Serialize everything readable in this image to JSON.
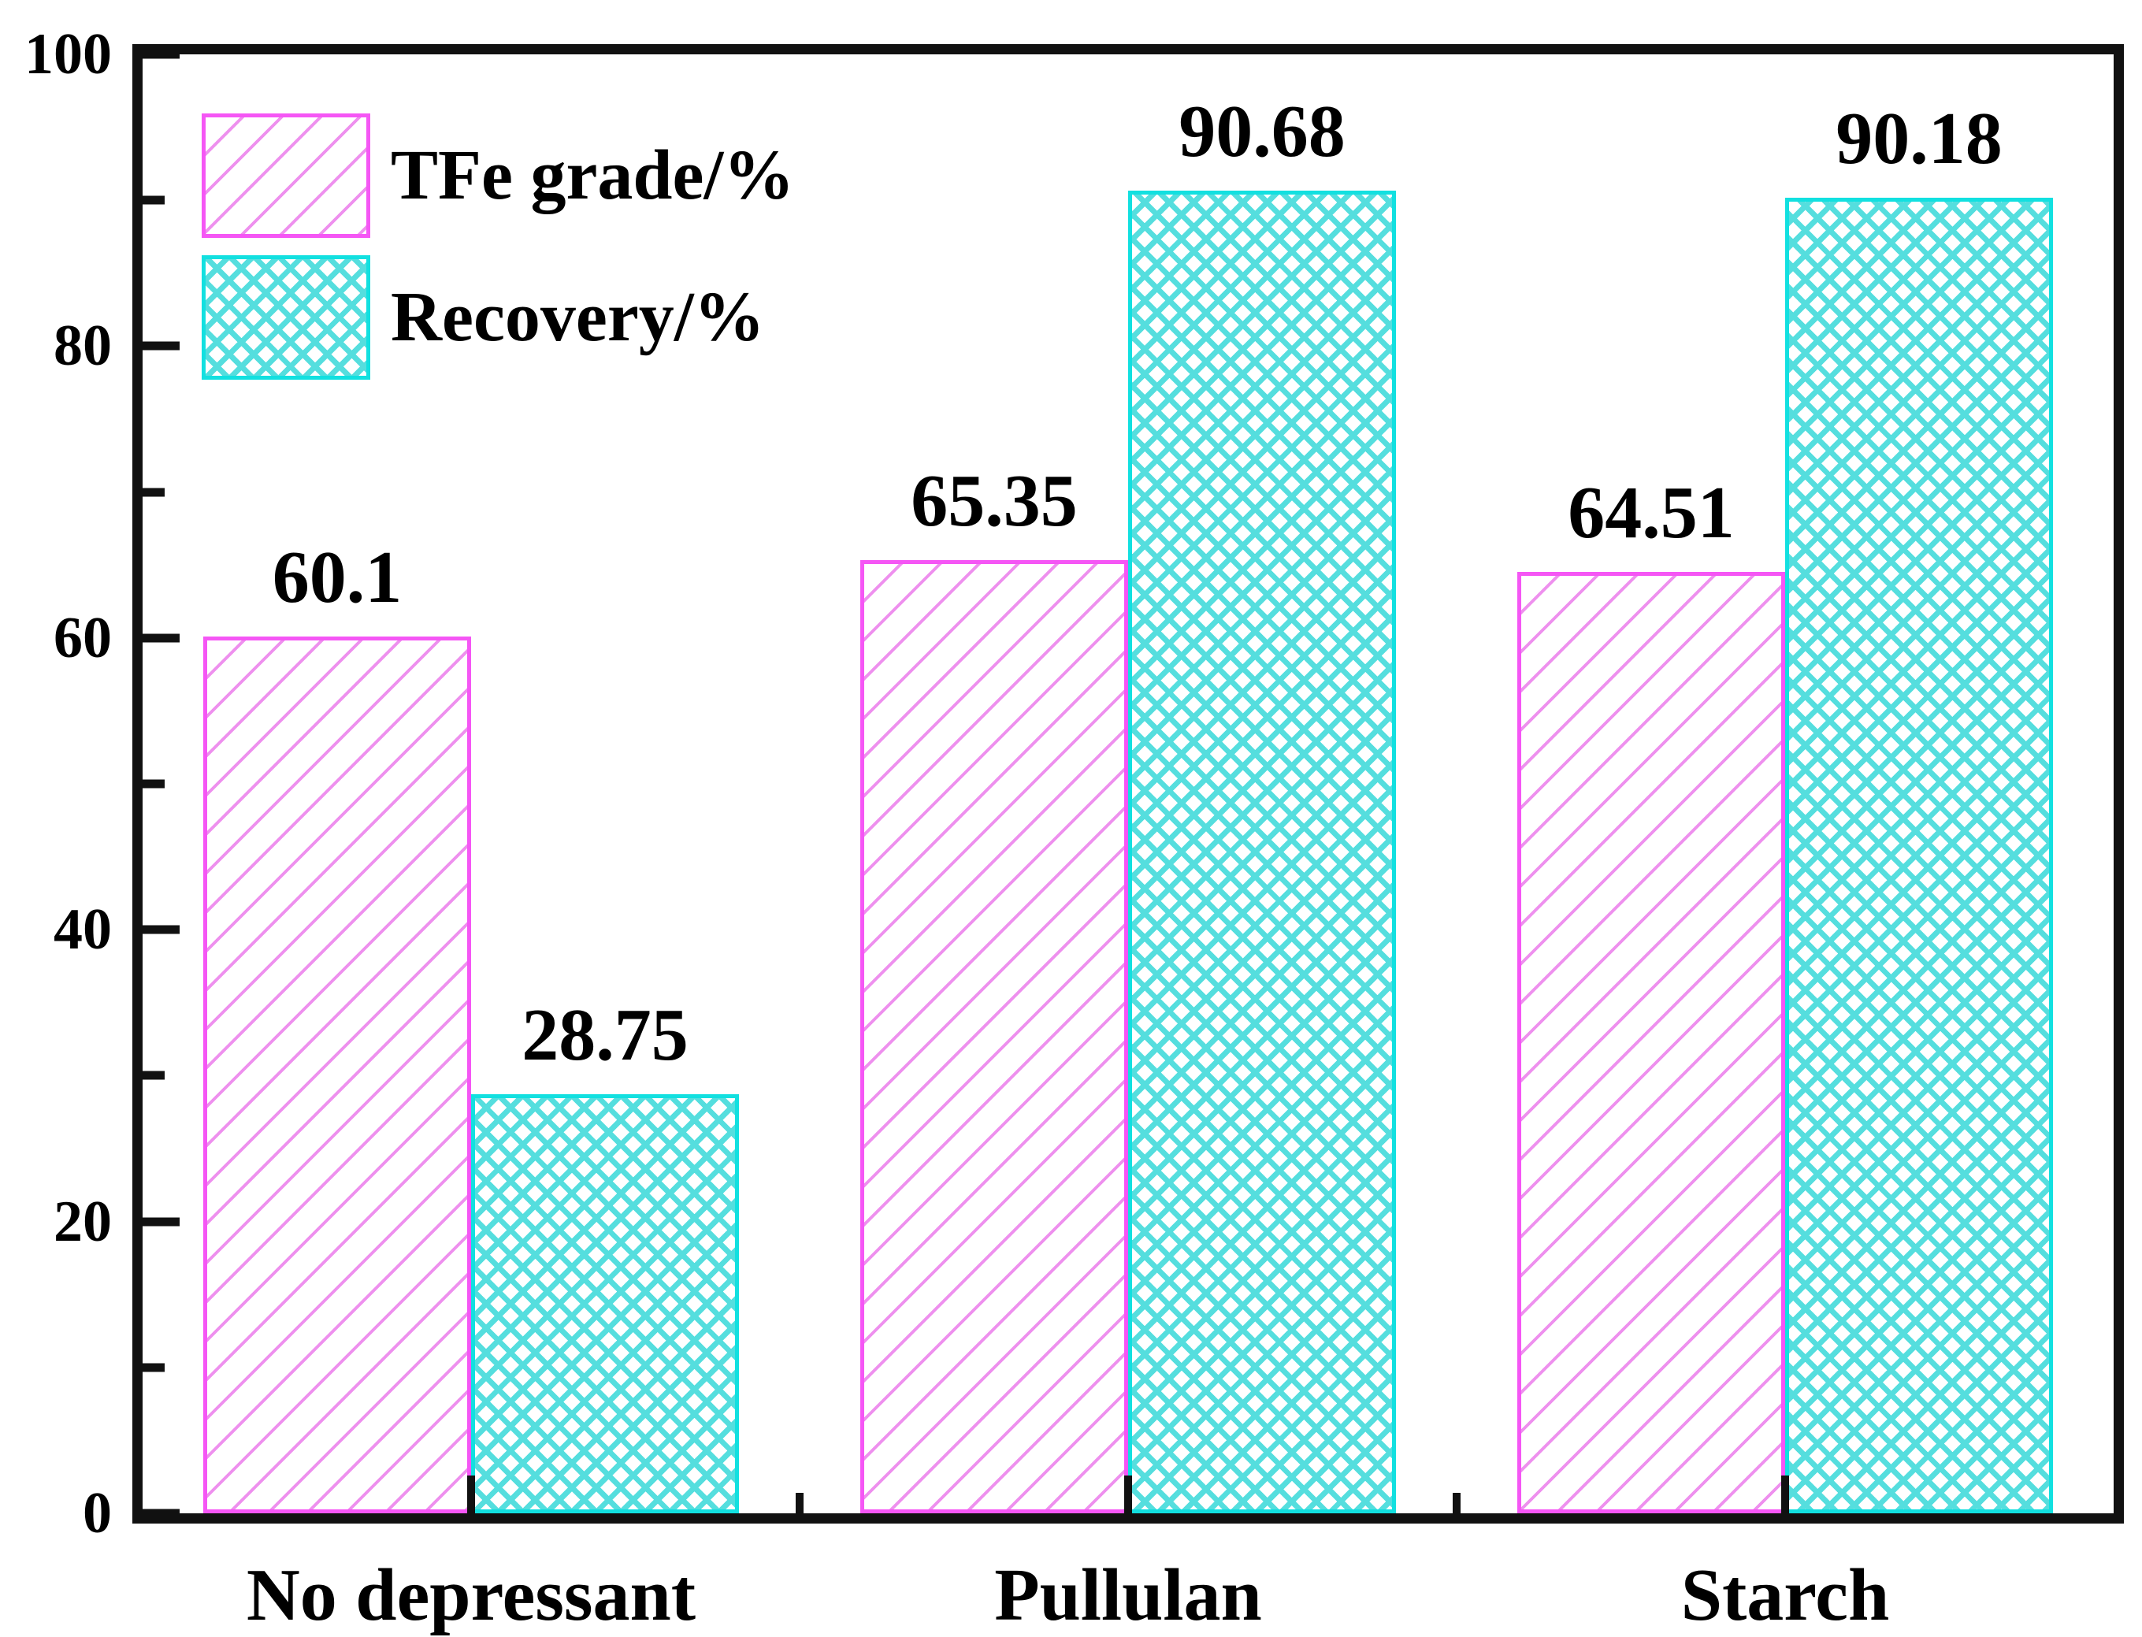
{
  "chart_data": {
    "type": "bar",
    "categories": [
      "No depressant",
      "Pullulan",
      "Starch"
    ],
    "series": [
      {
        "name": "TFe grade/%",
        "values": [
          60.1,
          65.35,
          64.51
        ],
        "labels": [
          "60.1",
          "65.35",
          "64.51"
        ],
        "hatch": "diagonal",
        "edge_color": "#f556f5",
        "hatch_color": "#ee90ee"
      },
      {
        "name": "Recovery/%",
        "values": [
          28.75,
          90.68,
          90.18
        ],
        "labels": [
          "28.75",
          "90.68",
          "90.18"
        ],
        "hatch": "crosshatch",
        "edge_color": "#12e0e0",
        "hatch_color": "#55dede"
      }
    ],
    "title": "",
    "xlabel": "",
    "ylabel": "",
    "ylim": [
      0,
      100
    ],
    "yticks_major": [
      0,
      20,
      40,
      60,
      80,
      100
    ],
    "ytick_labels": [
      "0",
      "20",
      "40",
      "60",
      "80",
      "100"
    ],
    "yticks_minor": [
      10,
      30,
      50,
      70,
      90
    ],
    "grid": false,
    "legend_position": "top-left",
    "axis_color": "#111111",
    "background_color": "#ffffff",
    "text_color": "#000000"
  }
}
